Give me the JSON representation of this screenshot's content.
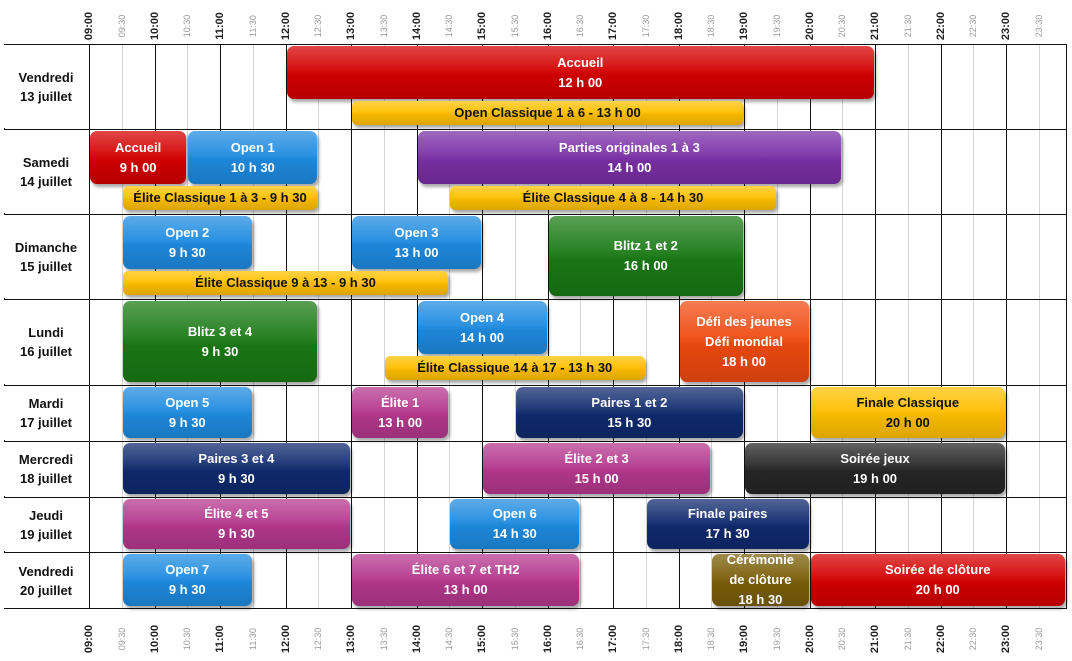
{
  "axis": {
    "hour_labels": [
      "09:00",
      "10:00",
      "11:00",
      "12:00",
      "13:00",
      "14:00",
      "15:00",
      "16:00",
      "17:00",
      "18:00",
      "19:00",
      "20:00",
      "21:00",
      "22:00",
      "23:00"
    ],
    "half_labels": [
      "09:30",
      "10:30",
      "11:30",
      "12:30",
      "13:30",
      "14:30",
      "15:30",
      "16:30",
      "17:30",
      "18:30",
      "19:30",
      "20:30",
      "21:30",
      "22:30",
      "23:30"
    ]
  },
  "days": [
    {
      "name": "Vendredi",
      "date": "13 juillet"
    },
    {
      "name": "Samedi",
      "date": "14 juillet"
    },
    {
      "name": "Dimanche",
      "date": "15 juillet"
    },
    {
      "name": "Lundi",
      "date": "16 juillet"
    },
    {
      "name": "Mardi",
      "date": "17 juillet"
    },
    {
      "name": "Mercredi",
      "date": "18 juillet"
    },
    {
      "name": "Jeudi",
      "date": "19 juillet"
    },
    {
      "name": "Vendredi",
      "date": "20 juillet"
    }
  ],
  "colors": {
    "red": "#d40000",
    "orange": "#f04a10",
    "yellow": "#ffc000",
    "blue": "#1e8be0",
    "purple": "#7a2fa6",
    "green": "#1a7a14",
    "navy": "#0f2a6e",
    "magenta": "#b5388e",
    "black": "#262626",
    "olive": "#7a5e08"
  },
  "events": [
    {
      "day": 0,
      "start": 12,
      "end": 21,
      "slot": "main",
      "color": "red",
      "lines": [
        "Accueil",
        "12 h 00"
      ]
    },
    {
      "day": 0,
      "start": 13,
      "end": 19,
      "slot": "lower",
      "color": "yellow",
      "lines": [
        "Open Classique 1 à 6 - 13 h 00"
      ]
    },
    {
      "day": 1,
      "start": 9,
      "end": 10.5,
      "slot": "main",
      "color": "red",
      "lines": [
        "Accueil",
        "9 h 00"
      ]
    },
    {
      "day": 1,
      "start": 10.5,
      "end": 12.5,
      "slot": "main",
      "color": "blue",
      "lines": [
        "Open 1",
        "10 h 30"
      ]
    },
    {
      "day": 1,
      "start": 14,
      "end": 20.5,
      "slot": "main",
      "color": "purple",
      "lines": [
        "Parties originales 1 à 3",
        "14 h 00"
      ]
    },
    {
      "day": 1,
      "start": 9.5,
      "end": 12.5,
      "slot": "lower",
      "color": "yellow",
      "lines": [
        "Élite Classique 1 à 3 - 9 h 30"
      ]
    },
    {
      "day": 1,
      "start": 14.5,
      "end": 19.5,
      "slot": "lower",
      "color": "yellow",
      "lines": [
        "Élite Classique 4 à 8 - 14 h 30"
      ]
    },
    {
      "day": 2,
      "start": 9.5,
      "end": 11.5,
      "slot": "main",
      "color": "blue",
      "lines": [
        "Open 2",
        "9 h 30"
      ]
    },
    {
      "day": 2,
      "start": 13,
      "end": 15,
      "slot": "main",
      "color": "blue",
      "lines": [
        "Open 3",
        "13 h 00"
      ]
    },
    {
      "day": 2,
      "start": 16,
      "end": 19,
      "slot": "tall",
      "color": "green",
      "lines": [
        "Blitz 1 et 2",
        "16 h 00"
      ]
    },
    {
      "day": 2,
      "start": 9.5,
      "end": 14.5,
      "slot": "lower",
      "color": "yellow",
      "lines": [
        "Élite Classique 9 à 13 -  9 h 30"
      ]
    },
    {
      "day": 3,
      "start": 9.5,
      "end": 12.5,
      "slot": "tall",
      "color": "green",
      "lines": [
        "Blitz 3 et 4",
        "9 h 30"
      ]
    },
    {
      "day": 3,
      "start": 14,
      "end": 16,
      "slot": "main",
      "color": "blue",
      "lines": [
        "Open 4",
        "14 h 00"
      ]
    },
    {
      "day": 3,
      "start": 18,
      "end": 20,
      "slot": "tall",
      "color": "orange",
      "lines": [
        "Défi des jeunes",
        "Défi  mondial",
        "18 h 00"
      ]
    },
    {
      "day": 3,
      "start": 13.5,
      "end": 17.5,
      "slot": "lower",
      "color": "yellow",
      "lines": [
        "Élite Classique 14 à 17 - 13 h 30"
      ]
    },
    {
      "day": 4,
      "start": 9.5,
      "end": 11.5,
      "slot": "full",
      "color": "blue",
      "lines": [
        "Open 5",
        "9 h 30"
      ]
    },
    {
      "day": 4,
      "start": 13,
      "end": 14.5,
      "slot": "full",
      "color": "magenta",
      "lines": [
        "Élite 1",
        "13 h 00"
      ]
    },
    {
      "day": 4,
      "start": 15.5,
      "end": 19,
      "slot": "full",
      "color": "navy",
      "lines": [
        "Paires 1 et 2",
        "15 h 30"
      ]
    },
    {
      "day": 4,
      "start": 20,
      "end": 23,
      "slot": "full",
      "color": "yellow",
      "lines": [
        "Finale Classique",
        "20 h 00"
      ]
    },
    {
      "day": 5,
      "start": 9.5,
      "end": 13,
      "slot": "full",
      "color": "navy",
      "lines": [
        "Paires 3 et 4",
        "9 h 30"
      ]
    },
    {
      "day": 5,
      "start": 15,
      "end": 18.5,
      "slot": "full",
      "color": "magenta",
      "lines": [
        "Élite 2 et 3",
        "15 h 00"
      ]
    },
    {
      "day": 5,
      "start": 19,
      "end": 23,
      "slot": "full",
      "color": "black",
      "lines": [
        "Soirée jeux",
        "19 h 00"
      ]
    },
    {
      "day": 6,
      "start": 9.5,
      "end": 13,
      "slot": "full",
      "color": "magenta",
      "lines": [
        "Élite 4 et 5",
        "9 h 30"
      ]
    },
    {
      "day": 6,
      "start": 14.5,
      "end": 16.5,
      "slot": "full",
      "color": "blue",
      "lines": [
        "Open 6",
        "14 h 30"
      ]
    },
    {
      "day": 6,
      "start": 17.5,
      "end": 20,
      "slot": "full",
      "color": "navy",
      "lines": [
        "Finale paires",
        "17 h 30"
      ]
    },
    {
      "day": 7,
      "start": 9.5,
      "end": 11.5,
      "slot": "full",
      "color": "blue",
      "lines": [
        "Open 7",
        "9 h 30"
      ]
    },
    {
      "day": 7,
      "start": 13,
      "end": 16.5,
      "slot": "full",
      "color": "magenta",
      "lines": [
        "Élite 6 et 7 et TH2",
        "13 h 00"
      ]
    },
    {
      "day": 7,
      "start": 18.5,
      "end": 20,
      "slot": "full",
      "color": "olive",
      "lines": [
        "Cérémonie",
        "de clôture",
        "18 h 30"
      ]
    },
    {
      "day": 7,
      "start": 20,
      "end": 24,
      "slot": "full",
      "color": "red",
      "lines": [
        "Soirée de clôture",
        "20 h 00"
      ]
    }
  ]
}
